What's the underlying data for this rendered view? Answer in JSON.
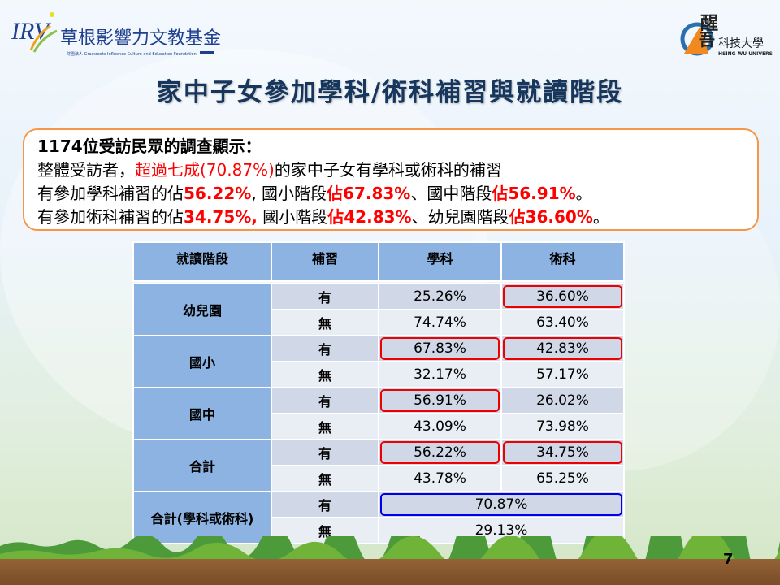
{
  "logos": {
    "left": "草根影響力文教基金會",
    "left_sub": "財團法人 Grassroots Influence Culture and Education Foundation",
    "right": "醒吾科技大學",
    "right_sub": "HSING WU UNIVERSITY"
  },
  "title": "家中子女參加學科/術科補習與就讀階段",
  "summary": {
    "line1": "1174位受訪民眾的調查顯示：",
    "line2": [
      "整體受訪者，",
      "超過七成(70.87%)",
      "的家中子女有學科或術科的補習"
    ],
    "line3": [
      "有參加學科補習的佔",
      "56.22%",
      ", 國小階段",
      "佔67.83%",
      "、國中階段",
      "佔56.91%",
      "。"
    ],
    "line4": [
      "有參加術科補習的佔",
      "34.75%,",
      " 國小階段",
      "佔42.83%",
      "、幼兒園階段",
      "佔36.60%",
      "。"
    ]
  },
  "table": {
    "headers": [
      "就讀階段",
      "補習",
      "學科",
      "術科"
    ],
    "groups": [
      {
        "stage": "幼兒園",
        "rows": [
          {
            "label": "有",
            "academic": "25.26%",
            "arts": "36.60%",
            "hl": [
              false,
              true
            ]
          },
          {
            "label": "無",
            "academic": "74.74%",
            "arts": "63.40%",
            "hl": [
              false,
              false
            ]
          }
        ]
      },
      {
        "stage": "國小",
        "rows": [
          {
            "label": "有",
            "academic": "67.83%",
            "arts": "42.83%",
            "hl": [
              true,
              true
            ]
          },
          {
            "label": "無",
            "academic": "32.17%",
            "arts": "57.17%",
            "hl": [
              false,
              false
            ]
          }
        ]
      },
      {
        "stage": "國中",
        "rows": [
          {
            "label": "有",
            "academic": "56.91%",
            "arts": "26.02%",
            "hl": [
              true,
              false
            ]
          },
          {
            "label": "無",
            "academic": "43.09%",
            "arts": "73.98%",
            "hl": [
              false,
              false
            ]
          }
        ]
      },
      {
        "stage": "合計",
        "rows": [
          {
            "label": "有",
            "academic": "56.22%",
            "arts": "34.75%",
            "hl": [
              true,
              true
            ]
          },
          {
            "label": "無",
            "academic": "43.78%",
            "arts": "65.25%",
            "hl": [
              false,
              false
            ]
          }
        ]
      }
    ],
    "combined": {
      "stage": "合計(學科或術科)",
      "rows": [
        {
          "label": "有",
          "value": "70.87%",
          "hl": true
        },
        {
          "label": "無",
          "value": "29.13%",
          "hl": false
        }
      ]
    }
  },
  "page_number": "7",
  "colors": {
    "title": "#17365d",
    "highlight_red": "#ff0000",
    "highlight_blue": "#0000ee",
    "header": "#8db3e2",
    "border": "#f79646"
  }
}
